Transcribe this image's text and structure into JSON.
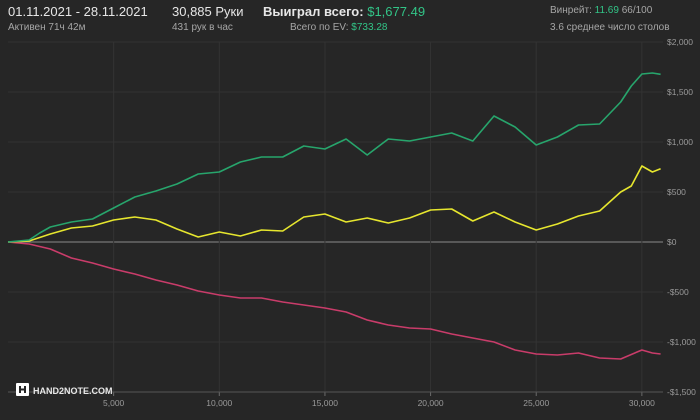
{
  "header": {
    "date_range": "01.11.2021 - 28.11.2021",
    "active_time": "Активен 71ч 42м",
    "hands": "30,885 Руки",
    "hands_per_hour": "431 рук в час",
    "won_label": "Выиграл всего:",
    "won_value": "$1,677.49",
    "ev_label": "Всего по EV:",
    "ev_value": "$733.28",
    "winrate_label": "Винрейт:",
    "winrate_value": "11.69",
    "winrate_unit": "66/100",
    "avg_tables": "3.6 среднее число столов"
  },
  "logo": {
    "text": "HAND2NOTE.COM"
  },
  "colors": {
    "background": "#262626",
    "won_line": "#27a56c",
    "ev_line": "#e6e62e",
    "nonshowdown_line": "#c93c6a",
    "zero_line": "#8a8a8a",
    "grid": "#333333",
    "accent_green": "#32c487"
  },
  "chart_data": {
    "type": "line",
    "xlim": [
      0,
      31000
    ],
    "ylim": [
      -1500,
      2000
    ],
    "x_ticks": [
      5000,
      10000,
      15000,
      20000,
      25000,
      30000
    ],
    "x_tick_labels": [
      "5,000",
      "10,000",
      "15,000",
      "20,000",
      "25,000",
      "30,000"
    ],
    "y_ticks": [
      2000,
      1500,
      1000,
      500,
      0,
      -500,
      -1000,
      -1500
    ],
    "y_tick_labels": [
      "$2,000",
      "$1,500",
      "$1,000",
      "$500",
      "$0",
      "-$500",
      "-$1,000",
      "-$1,500"
    ],
    "grid": true,
    "series": [
      {
        "color": "#27a56c",
        "x": [
          0,
          1000,
          1500,
          2000,
          3000,
          4000,
          5000,
          6000,
          7000,
          8000,
          9000,
          10000,
          11000,
          12000,
          13000,
          14000,
          15000,
          16000,
          17000,
          18000,
          19000,
          20000,
          21000,
          22000,
          23000,
          24000,
          25000,
          26000,
          27000,
          28000,
          29000,
          29500,
          30000,
          30500,
          30885
        ],
        "y": [
          0,
          20,
          90,
          150,
          200,
          230,
          340,
          450,
          510,
          580,
          680,
          700,
          800,
          850,
          850,
          960,
          930,
          1030,
          870,
          1030,
          1010,
          1050,
          1090,
          1010,
          1260,
          1150,
          970,
          1050,
          1170,
          1180,
          1400,
          1560,
          1680,
          1690,
          1677
        ]
      },
      {
        "color": "#e6e62e",
        "x": [
          0,
          1000,
          2000,
          3000,
          4000,
          5000,
          6000,
          7000,
          8000,
          9000,
          10000,
          11000,
          12000,
          13000,
          14000,
          15000,
          16000,
          17000,
          18000,
          19000,
          20000,
          21000,
          22000,
          23000,
          24000,
          25000,
          26000,
          27000,
          28000,
          29000,
          29500,
          30000,
          30500,
          30885
        ],
        "y": [
          0,
          10,
          80,
          140,
          160,
          220,
          250,
          220,
          130,
          50,
          100,
          60,
          120,
          110,
          250,
          280,
          200,
          240,
          190,
          240,
          320,
          330,
          210,
          300,
          200,
          120,
          180,
          260,
          310,
          500,
          560,
          760,
          700,
          733
        ]
      },
      {
        "color": "#c93c6a",
        "x": [
          0,
          1000,
          2000,
          3000,
          4000,
          5000,
          6000,
          7000,
          8000,
          9000,
          10000,
          11000,
          12000,
          13000,
          14000,
          15000,
          16000,
          17000,
          18000,
          19000,
          20000,
          21000,
          22000,
          23000,
          24000,
          25000,
          26000,
          27000,
          28000,
          29000,
          30000,
          30500,
          30885
        ],
        "y": [
          0,
          -20,
          -70,
          -160,
          -210,
          -270,
          -320,
          -380,
          -430,
          -490,
          -530,
          -560,
          -560,
          -600,
          -630,
          -660,
          -700,
          -780,
          -830,
          -860,
          -870,
          -920,
          -960,
          -1000,
          -1080,
          -1120,
          -1130,
          -1110,
          -1160,
          -1170,
          -1080,
          -1110,
          -1120
        ]
      }
    ]
  }
}
